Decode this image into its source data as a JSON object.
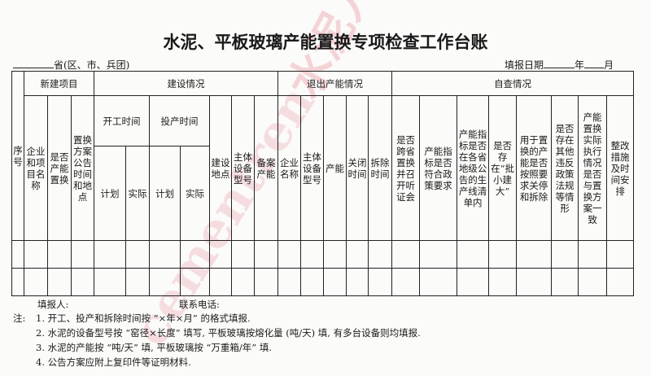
{
  "title": "水泥、平板玻璃产能置换专项检查工作台账",
  "province_label": "省(区、市、兵团)",
  "date_label": "填报日期",
  "year_label": "年",
  "month_label": "月",
  "watermark": {
    "cn": "水泥人网",
    "en": "cementren.com"
  },
  "groups": {
    "new_project": "新建项目",
    "construction": "建设情况",
    "exit": "退出产能情况",
    "self_check": "自查情况"
  },
  "columns": {
    "seq": "序号",
    "company_project": "企业和项目名称",
    "is_replacement": "是否产能置换",
    "announce": "置换方案公告时间和地点",
    "start_time": "开工时间",
    "production_time": "投产时间",
    "plan": "计划",
    "actual": "实际",
    "site": "建设地点",
    "equipment_model": "主体设备型号",
    "filed_capacity": "备案产能",
    "exit_company": "企业名称",
    "exit_equipment": "主体设备型号",
    "exit_capacity": "产能",
    "close_time": "关闭时间",
    "demolish_time": "拆除时间",
    "cross_province": "是否跨省置换并召开听证会",
    "policy": "产能指标是否符合政策要求",
    "listed": "产能指标是否在各省地级公告的生产线清单内",
    "small_big": "是否存在“批小建大”",
    "shutdown": "用于置换的产能是否按照要求关停和拆除",
    "violations": "是否存在其他违反政策法规等情形",
    "consistent": "产能置换实际执行情况是否与置换方案一致",
    "rectify": "整改措施及时间安排"
  },
  "footer": {
    "reporter": "填报人:",
    "phone": "联系电话:",
    "notes_label": "注:",
    "notes": [
      "1. 开工、投产和拆除时间按 “×年×月” 的格式填报.",
      "2. 水泥的设备型号按 “窑径×长度” 填写, 平板玻璃按熔化量 (吨/天) 填, 有多台设备则均填报.",
      "3. 水泥的产能按 “吨/天” 填, 平板玻璃按 “万重箱/年” 填.",
      "4. 公告方案应附上复印件等证明材料."
    ]
  }
}
